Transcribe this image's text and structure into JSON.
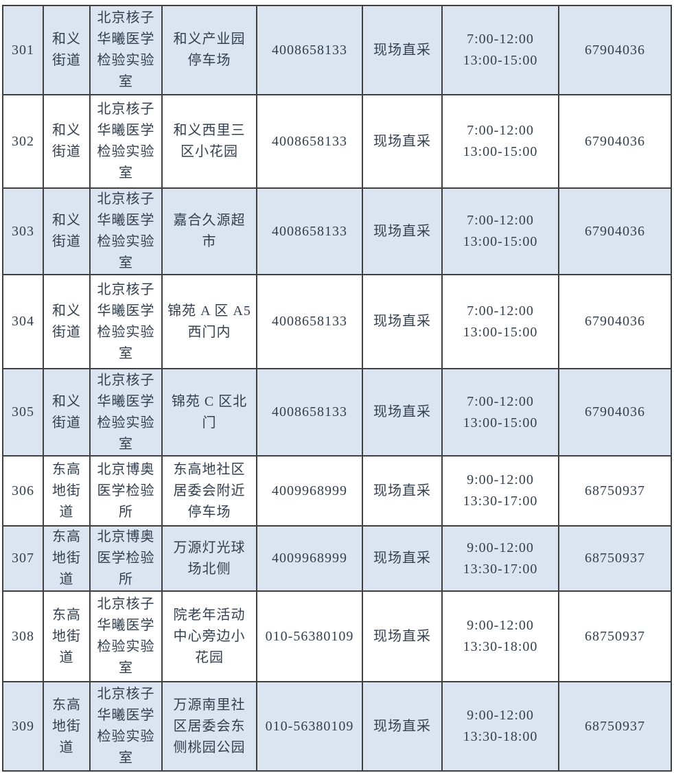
{
  "table": {
    "description": "nucleic-acid-testing-sites-table",
    "colors": {
      "row_shaded": "#dbe5f1",
      "row_plain": "#ffffff",
      "border": "#404040",
      "text": "#333f4f"
    },
    "rows": [
      {
        "id": "301",
        "street": "和义\n街道",
        "org": "北京核子\n华曦医学\n检验实验\n室",
        "site": "和义产业园\n停车场",
        "phone": "4008658133",
        "method": "现场直采",
        "hours": "7:00-12:00\n13:00-15:00",
        "contact": "67904036",
        "shaded": true
      },
      {
        "id": "302",
        "street": "和义\n街道",
        "org": "北京核子\n华曦医学\n检验实验\n室",
        "site": "和义西里三\n区小花园",
        "phone": "4008658133",
        "method": "现场直采",
        "hours": "7:00-12:00\n13:00-15:00",
        "contact": "67904036",
        "shaded": false
      },
      {
        "id": "303",
        "street": "和义\n街道",
        "org": "北京核子\n华曦医学\n检验实验\n室",
        "site": "嘉合久源超\n市",
        "phone": "4008658133",
        "method": "现场直采",
        "hours": "7:00-12:00\n13:00-15:00",
        "contact": "67904036",
        "shaded": true
      },
      {
        "id": "304",
        "street": "和义\n街道",
        "org": "北京核子\n华曦医学\n检验实验\n室",
        "site": "锦苑 A 区 A5\n西门内",
        "phone": "4008658133",
        "method": "现场直采",
        "hours": "7:00-12:00\n13:00-15:00",
        "contact": "67904036",
        "shaded": false
      },
      {
        "id": "305",
        "street": "和义\n街道",
        "org": "北京核子\n华曦医学\n检验实验\n室",
        "site": "锦苑 C 区北\n门",
        "phone": "4008658133",
        "method": "现场直采",
        "hours": "7:00-12:00\n13:00-15:00",
        "contact": "67904036",
        "shaded": true
      },
      {
        "id": "306",
        "street": "东高\n地街\n道",
        "org": "北京博奥\n医学检验\n所",
        "site": "东高地社区\n居委会附近\n停车场",
        "phone": "4009968999",
        "method": "现场直采",
        "hours": "9:00-12:00\n13:30-17:00",
        "contact": "68750937",
        "shaded": false
      },
      {
        "id": "307",
        "street": "东高\n地街\n道",
        "org": "北京博奥\n医学检验\n所",
        "site": "万源灯光球\n场北侧",
        "phone": "4009968999",
        "method": "现场直采",
        "hours": "9:00-12:00\n13:30-17:00",
        "contact": "68750937",
        "shaded": true
      },
      {
        "id": "308",
        "street": "东高\n地街\n道",
        "org": "北京核子\n华曦医学\n检验实验\n室",
        "site": "院老年活动\n中心旁边小\n花园",
        "phone": "010-56380109",
        "method": "现场直采",
        "hours": "9:00-12:00\n13:30-18:00",
        "contact": "68750937",
        "shaded": false
      },
      {
        "id": "309",
        "street": "东高\n地街\n道",
        "org": "北京核子\n华曦医学\n检验实验\n室",
        "site": "万源南里社\n区居委会东\n侧桃园公园",
        "phone": "010-56380109",
        "method": "现场直采",
        "hours": "9:00-12:00\n13:30-18:00",
        "contact": "68750937",
        "shaded": true
      }
    ]
  }
}
